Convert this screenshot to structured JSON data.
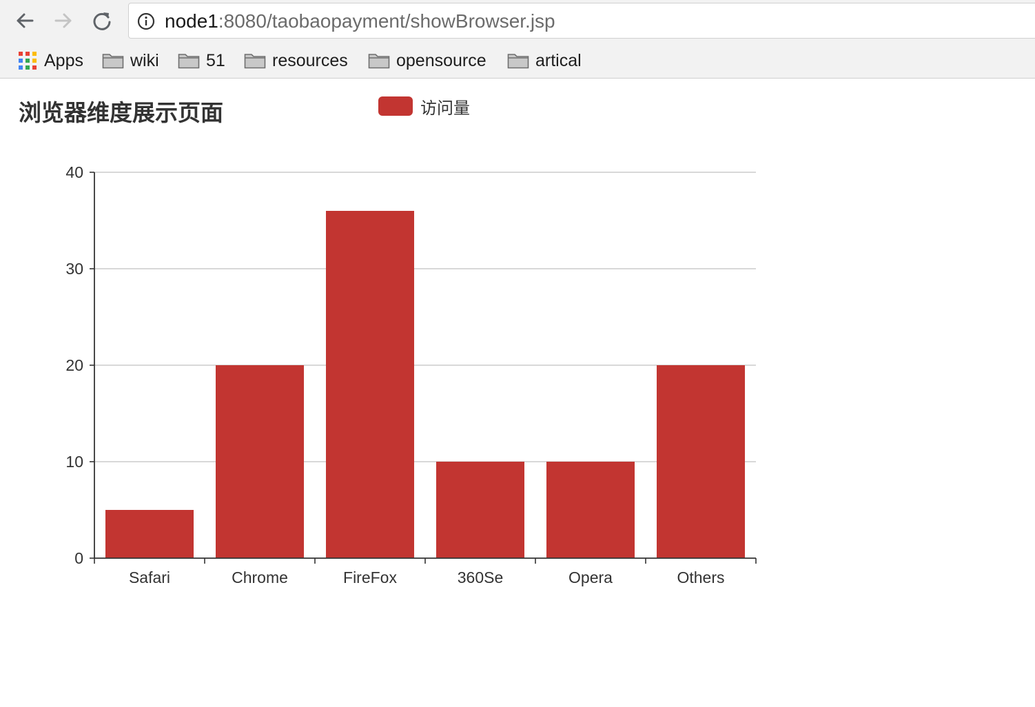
{
  "browser": {
    "url_host": "node1",
    "url_rest": ":8080/taobaopayment/showBrowser.jsp",
    "bookmarks": [
      "Apps",
      "wiki",
      "51",
      "resources",
      "opensource",
      "artical"
    ]
  },
  "colors": {
    "bar": "#c23531",
    "grid": "#cccccc",
    "axis": "#333333"
  },
  "icons": {
    "back": "back-arrow-icon",
    "forward": "forward-arrow-icon",
    "reload": "reload-icon",
    "info": "info-icon",
    "apps": "apps-grid-icon",
    "folder": "folder-icon"
  },
  "chart_data": {
    "type": "bar",
    "title": "浏览器维度展示页面",
    "legend": [
      "访问量"
    ],
    "legend_position": "top-center",
    "categories": [
      "Safari",
      "Chrome",
      "FireFox",
      "360Se",
      "Opera",
      "Others"
    ],
    "series": [
      {
        "name": "访问量",
        "values": [
          5,
          20,
          36,
          10,
          10,
          20
        ]
      }
    ],
    "ylim": [
      0,
      40
    ],
    "yticks": [
      0,
      10,
      20,
      30,
      40
    ],
    "grid": true
  }
}
